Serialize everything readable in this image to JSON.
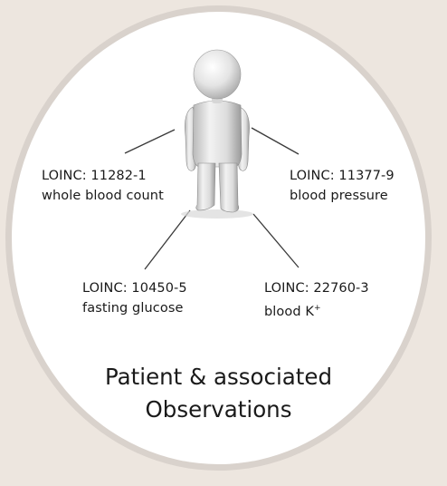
{
  "title": {
    "line1": "Patient & associated",
    "line2": "Observations"
  },
  "observations": [
    {
      "code": "LOINC: 11282-1",
      "description": "whole blood count"
    },
    {
      "code": "LOINC: 11377-9",
      "description": "blood pressure"
    },
    {
      "code": "LOINC: 10450-5",
      "description": "fasting glucose"
    },
    {
      "code": "LOINC: 22760-3",
      "description": "blood K",
      "description_superscript": "+"
    }
  ],
  "colors": {
    "background": "#ede6df",
    "oval_fill": "#ffffff",
    "oval_border": "#d9d2cc",
    "text": "#1a1a1a",
    "connector": "#3a3a3a"
  },
  "icons": {
    "patient": "person-figure-icon"
  }
}
